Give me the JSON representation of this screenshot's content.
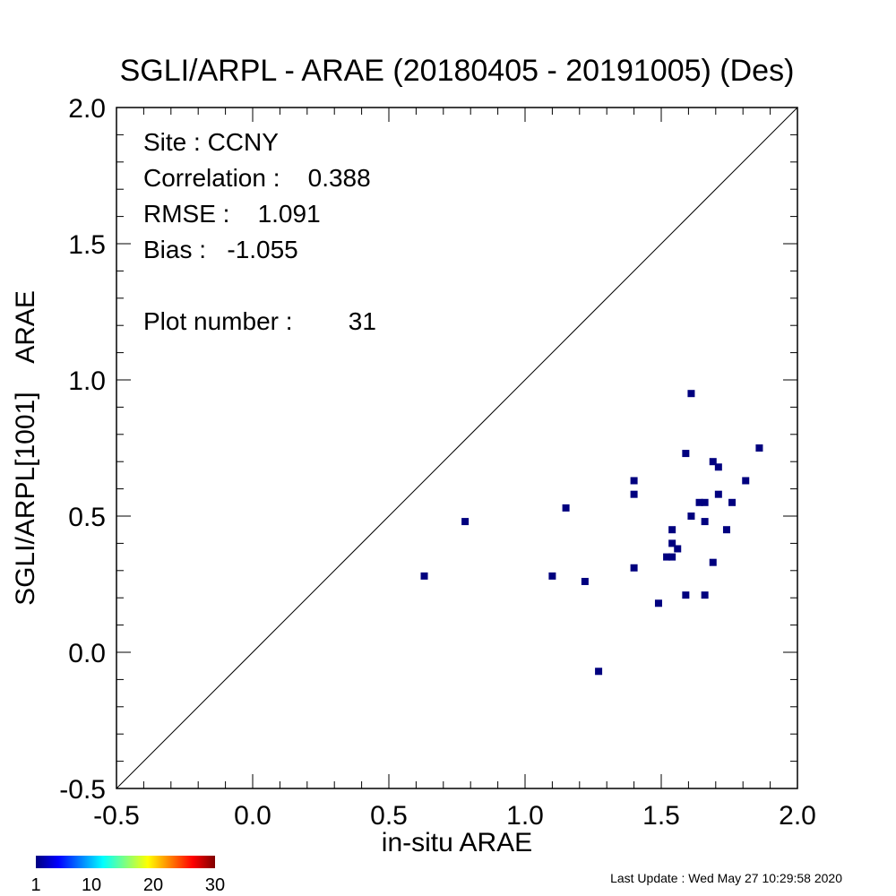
{
  "chart_data": {
    "type": "scatter",
    "title": "SGLI/ARPL - ARAE (20180405 - 20191005) (Des)",
    "xlabel": "in-situ ARAE",
    "ylabel": "SGLI/ARPL[1001]    ARAE",
    "xlim": [
      -0.5,
      2.0
    ],
    "ylim": [
      -0.5,
      2.0
    ],
    "x_ticks": [
      "-0.5",
      "0.0",
      "0.5",
      "1.0",
      "1.5",
      "2.0"
    ],
    "y_ticks": [
      "-0.5",
      "0.0",
      "0.5",
      "1.0",
      "1.5",
      "2.0"
    ],
    "reference_line": "y = x",
    "marker_color": "#00007f",
    "points": [
      {
        "x": 0.63,
        "y": 0.28
      },
      {
        "x": 0.78,
        "y": 0.48
      },
      {
        "x": 1.1,
        "y": 0.28
      },
      {
        "x": 1.15,
        "y": 0.53
      },
      {
        "x": 1.22,
        "y": 0.26
      },
      {
        "x": 1.27,
        "y": -0.07
      },
      {
        "x": 1.4,
        "y": 0.63
      },
      {
        "x": 1.4,
        "y": 0.58
      },
      {
        "x": 1.4,
        "y": 0.31
      },
      {
        "x": 1.49,
        "y": 0.18
      },
      {
        "x": 1.52,
        "y": 0.35
      },
      {
        "x": 1.54,
        "y": 0.35
      },
      {
        "x": 1.54,
        "y": 0.45
      },
      {
        "x": 1.54,
        "y": 0.4
      },
      {
        "x": 1.56,
        "y": 0.38
      },
      {
        "x": 1.59,
        "y": 0.73
      },
      {
        "x": 1.59,
        "y": 0.21
      },
      {
        "x": 1.61,
        "y": 0.95
      },
      {
        "x": 1.61,
        "y": 0.5
      },
      {
        "x": 1.64,
        "y": 0.55
      },
      {
        "x": 1.66,
        "y": 0.55
      },
      {
        "x": 1.66,
        "y": 0.48
      },
      {
        "x": 1.66,
        "y": 0.21
      },
      {
        "x": 1.69,
        "y": 0.7
      },
      {
        "x": 1.69,
        "y": 0.33
      },
      {
        "x": 1.71,
        "y": 0.68
      },
      {
        "x": 1.71,
        "y": 0.58
      },
      {
        "x": 1.74,
        "y": 0.45
      },
      {
        "x": 1.76,
        "y": 0.55
      },
      {
        "x": 1.81,
        "y": 0.63
      },
      {
        "x": 1.86,
        "y": 0.75
      }
    ]
  },
  "stats": {
    "site": "Site : CCNY",
    "correlation": "Correlation :    0.388",
    "rmse": "RMSE :    1.091",
    "bias": "Bias :   -1.055",
    "plot_number": "Plot number :        31"
  },
  "colorbar": {
    "labels": [
      "1",
      "10",
      "20",
      "30"
    ],
    "range": [
      1,
      30
    ],
    "colormap": "jet"
  },
  "footer": {
    "last_update": "Last Update : Wed May 27 10:29:58 2020"
  }
}
